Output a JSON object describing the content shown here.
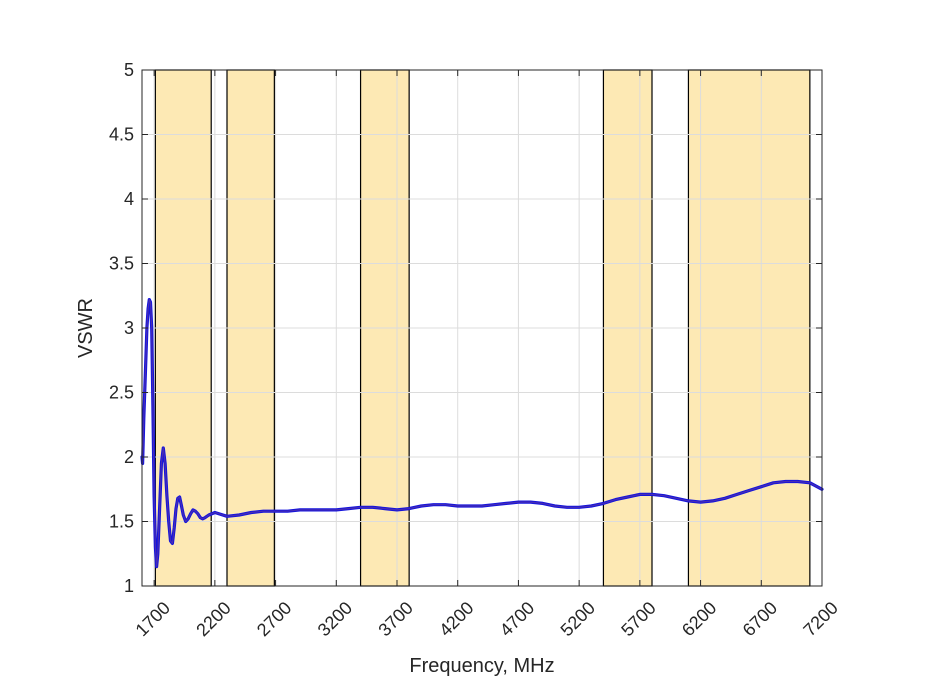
{
  "chart_data": {
    "type": "line",
    "title": "",
    "xlabel": "Frequency, MHz",
    "ylabel": "VSWR",
    "xlim": [
      1600,
      7200
    ],
    "ylim": [
      1,
      5
    ],
    "xticks": [
      1700,
      2200,
      2700,
      3200,
      3700,
      4200,
      4700,
      5200,
      5700,
      6200,
      6700,
      7200
    ],
    "xtick_labels": [
      "1700",
      "2200",
      "2700",
      "3200",
      "3700",
      "4200",
      "4700",
      "5200",
      "5700",
      "6200",
      "6700",
      "7200"
    ],
    "yticks": [
      1,
      1.5,
      2,
      2.5,
      3,
      3.5,
      4,
      4.5,
      5
    ],
    "ytick_labels": [
      "1",
      "1.5",
      "2",
      "2.5",
      "3",
      "3.5",
      "4",
      "4.5",
      "5"
    ],
    "grid": true,
    "colors": {
      "line": "#1414dc",
      "line_overlay": "#6a3d9a",
      "band_fill": "#fde9b4",
      "band_edge": "#000000",
      "grid": "#dcdcdc",
      "axis": "#262626"
    },
    "bands": [
      {
        "x0": 1710,
        "x1": 2170
      },
      {
        "x0": 2300,
        "x1": 2690
      },
      {
        "x0": 3400,
        "x1": 3800
      },
      {
        "x0": 5400,
        "x1": 5800
      },
      {
        "x0": 6100,
        "x1": 7100
      }
    ],
    "series": [
      {
        "x": [
          1600,
          1605,
          1615,
          1630,
          1640,
          1650,
          1660,
          1670,
          1680,
          1690,
          1700,
          1710,
          1720,
          1730,
          1745,
          1760,
          1775,
          1790,
          1805,
          1820,
          1835,
          1850,
          1865,
          1880,
          1895,
          1910,
          1925,
          1940,
          1960,
          1980,
          2000,
          2020,
          2040,
          2060,
          2080,
          2100,
          2120,
          2150,
          2200,
          2300,
          2400,
          2500,
          2600,
          2700,
          2800,
          2900,
          3000,
          3100,
          3200,
          3300,
          3400,
          3500,
          3600,
          3700,
          3800,
          3900,
          4000,
          4100,
          4200,
          4300,
          4400,
          4500,
          4600,
          4700,
          4800,
          4900,
          5000,
          5100,
          5200,
          5300,
          5400,
          5500,
          5600,
          5700,
          5800,
          5900,
          6000,
          6100,
          6200,
          6300,
          6400,
          6500,
          6600,
          6700,
          6800,
          6900,
          7000,
          7100,
          7200
        ],
        "y": [
          2.0,
          1.95,
          2.3,
          2.7,
          3.0,
          3.15,
          3.22,
          3.2,
          3.0,
          2.4,
          1.7,
          1.3,
          1.15,
          1.25,
          1.6,
          1.95,
          2.07,
          1.95,
          1.7,
          1.5,
          1.35,
          1.33,
          1.45,
          1.6,
          1.68,
          1.69,
          1.62,
          1.55,
          1.5,
          1.52,
          1.56,
          1.59,
          1.58,
          1.56,
          1.53,
          1.52,
          1.53,
          1.55,
          1.57,
          1.54,
          1.55,
          1.57,
          1.58,
          1.58,
          1.58,
          1.59,
          1.59,
          1.59,
          1.59,
          1.6,
          1.61,
          1.61,
          1.6,
          1.59,
          1.6,
          1.62,
          1.63,
          1.63,
          1.62,
          1.62,
          1.62,
          1.63,
          1.64,
          1.65,
          1.65,
          1.64,
          1.62,
          1.61,
          1.61,
          1.62,
          1.64,
          1.67,
          1.69,
          1.71,
          1.71,
          1.7,
          1.68,
          1.66,
          1.65,
          1.66,
          1.68,
          1.71,
          1.74,
          1.77,
          1.8,
          1.81,
          1.81,
          1.8,
          1.75
        ]
      }
    ]
  }
}
